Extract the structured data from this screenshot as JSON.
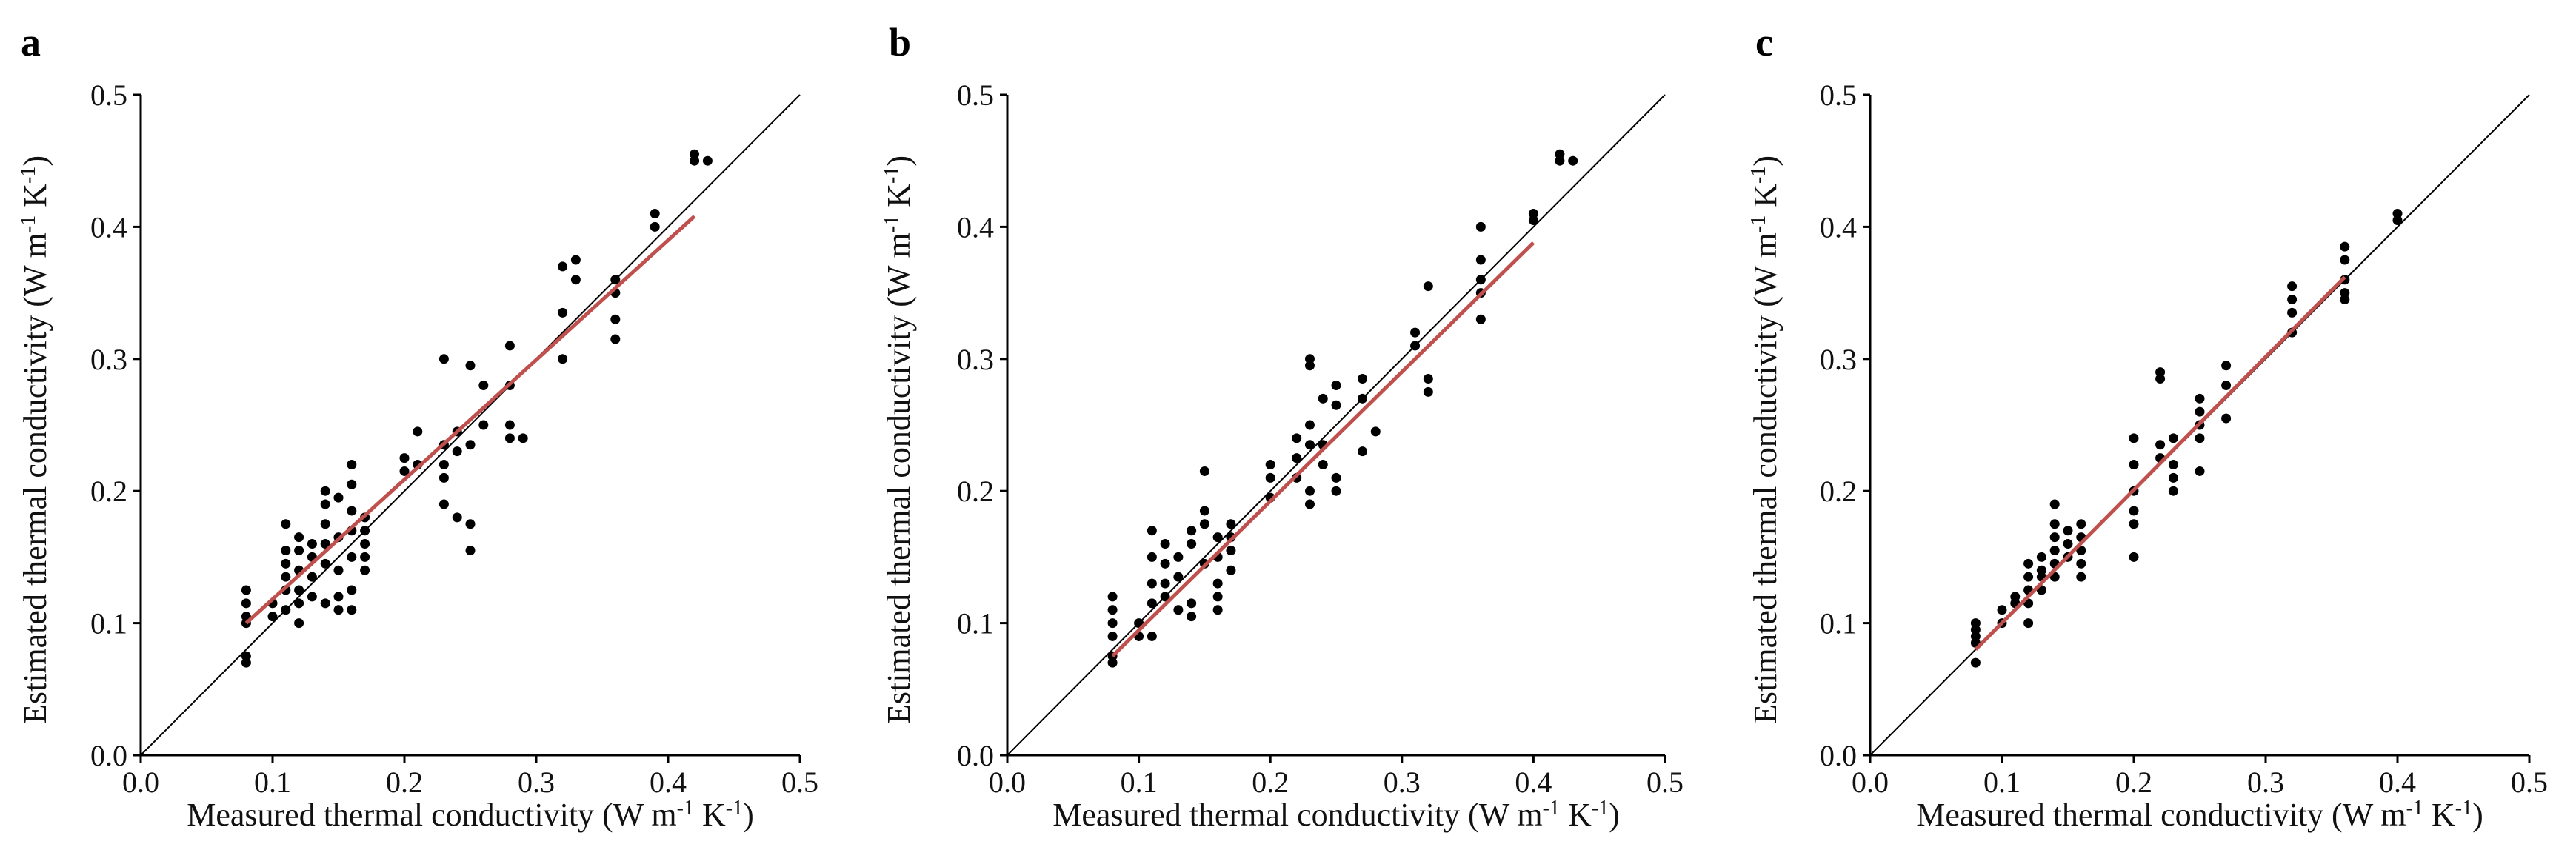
{
  "colors": {
    "points": "#000000",
    "one_to_one": "#000000",
    "fit": "#c0504d"
  },
  "chart_data": [
    {
      "type": "scatter",
      "panel": "a",
      "xlabel": "Measured thermal conductivity (W m-1 K-1)",
      "ylabel": "Estimated thermal conductivity (W m-1 K-1)",
      "xlim": [
        0,
        0.5
      ],
      "ylim": [
        0,
        0.5
      ],
      "xticks": [
        "0.0",
        "0.1",
        "0.2",
        "0.3",
        "0.4",
        "0.5"
      ],
      "yticks": [
        "0.0",
        "0.1",
        "0.2",
        "0.3",
        "0.4",
        "0.5"
      ],
      "reference_line": {
        "name": "1:1 line",
        "x": [
          0,
          0.5
        ],
        "y": [
          0,
          0.5
        ]
      },
      "fit_line": {
        "name": "regression",
        "x": [
          0.08,
          0.42
        ],
        "y": [
          0.1,
          0.408
        ]
      },
      "points": [
        [
          0.08,
          0.125
        ],
        [
          0.08,
          0.115
        ],
        [
          0.08,
          0.105
        ],
        [
          0.08,
          0.1
        ],
        [
          0.08,
          0.075
        ],
        [
          0.08,
          0.07
        ],
        [
          0.1,
          0.115
        ],
        [
          0.1,
          0.105
        ],
        [
          0.11,
          0.175
        ],
        [
          0.11,
          0.155
        ],
        [
          0.11,
          0.145
        ],
        [
          0.11,
          0.135
        ],
        [
          0.11,
          0.125
        ],
        [
          0.11,
          0.11
        ],
        [
          0.12,
          0.165
        ],
        [
          0.12,
          0.155
        ],
        [
          0.12,
          0.14
        ],
        [
          0.12,
          0.125
        ],
        [
          0.12,
          0.115
        ],
        [
          0.12,
          0.1
        ],
        [
          0.13,
          0.16
        ],
        [
          0.13,
          0.15
        ],
        [
          0.13,
          0.135
        ],
        [
          0.13,
          0.12
        ],
        [
          0.14,
          0.2
        ],
        [
          0.14,
          0.19
        ],
        [
          0.14,
          0.175
        ],
        [
          0.14,
          0.16
        ],
        [
          0.14,
          0.145
        ],
        [
          0.14,
          0.115
        ],
        [
          0.15,
          0.195
        ],
        [
          0.15,
          0.165
        ],
        [
          0.15,
          0.14
        ],
        [
          0.15,
          0.12
        ],
        [
          0.15,
          0.11
        ],
        [
          0.16,
          0.22
        ],
        [
          0.16,
          0.205
        ],
        [
          0.16,
          0.185
        ],
        [
          0.16,
          0.17
        ],
        [
          0.16,
          0.15
        ],
        [
          0.16,
          0.125
        ],
        [
          0.16,
          0.11
        ],
        [
          0.17,
          0.18
        ],
        [
          0.17,
          0.17
        ],
        [
          0.17,
          0.16
        ],
        [
          0.17,
          0.15
        ],
        [
          0.17,
          0.14
        ],
        [
          0.2,
          0.225
        ],
        [
          0.2,
          0.215
        ],
        [
          0.21,
          0.22
        ],
        [
          0.21,
          0.245
        ],
        [
          0.23,
          0.3
        ],
        [
          0.23,
          0.235
        ],
        [
          0.23,
          0.22
        ],
        [
          0.23,
          0.21
        ],
        [
          0.23,
          0.19
        ],
        [
          0.24,
          0.245
        ],
        [
          0.24,
          0.23
        ],
        [
          0.24,
          0.18
        ],
        [
          0.25,
          0.295
        ],
        [
          0.25,
          0.235
        ],
        [
          0.25,
          0.175
        ],
        [
          0.25,
          0.155
        ],
        [
          0.26,
          0.28
        ],
        [
          0.26,
          0.25
        ],
        [
          0.28,
          0.31
        ],
        [
          0.28,
          0.28
        ],
        [
          0.28,
          0.25
        ],
        [
          0.28,
          0.24
        ],
        [
          0.29,
          0.24
        ],
        [
          0.32,
          0.37
        ],
        [
          0.32,
          0.335
        ],
        [
          0.32,
          0.3
        ],
        [
          0.33,
          0.375
        ],
        [
          0.33,
          0.36
        ],
        [
          0.36,
          0.36
        ],
        [
          0.36,
          0.35
        ],
        [
          0.36,
          0.33
        ],
        [
          0.36,
          0.315
        ],
        [
          0.39,
          0.41
        ],
        [
          0.39,
          0.4
        ],
        [
          0.42,
          0.455
        ],
        [
          0.42,
          0.45
        ],
        [
          0.43,
          0.45
        ]
      ]
    },
    {
      "type": "scatter",
      "panel": "b",
      "xlabel": "Measured thermal conductivity (W m-1 K-1)",
      "ylabel": "Estimated thermal conductivity (W m-1 K-1)",
      "xlim": [
        0,
        0.5
      ],
      "ylim": [
        0,
        0.5
      ],
      "xticks": [
        "0.0",
        "0.1",
        "0.2",
        "0.3",
        "0.4",
        "0.5"
      ],
      "yticks": [
        "0.0",
        "0.1",
        "0.2",
        "0.3",
        "0.4",
        "0.5"
      ],
      "reference_line": {
        "name": "1:1 line",
        "x": [
          0,
          0.5
        ],
        "y": [
          0,
          0.5
        ]
      },
      "fit_line": {
        "name": "regression",
        "x": [
          0.08,
          0.4
        ],
        "y": [
          0.075,
          0.388
        ]
      },
      "points": [
        [
          0.08,
          0.12
        ],
        [
          0.08,
          0.11
        ],
        [
          0.08,
          0.1
        ],
        [
          0.08,
          0.09
        ],
        [
          0.08,
          0.075
        ],
        [
          0.08,
          0.07
        ],
        [
          0.1,
          0.1
        ],
        [
          0.1,
          0.09
        ],
        [
          0.11,
          0.17
        ],
        [
          0.11,
          0.15
        ],
        [
          0.11,
          0.13
        ],
        [
          0.11,
          0.115
        ],
        [
          0.11,
          0.09
        ],
        [
          0.12,
          0.16
        ],
        [
          0.12,
          0.145
        ],
        [
          0.12,
          0.13
        ],
        [
          0.12,
          0.12
        ],
        [
          0.13,
          0.15
        ],
        [
          0.13,
          0.135
        ],
        [
          0.13,
          0.11
        ],
        [
          0.14,
          0.17
        ],
        [
          0.14,
          0.16
        ],
        [
          0.14,
          0.115
        ],
        [
          0.14,
          0.105
        ],
        [
          0.15,
          0.215
        ],
        [
          0.15,
          0.185
        ],
        [
          0.15,
          0.175
        ],
        [
          0.15,
          0.145
        ],
        [
          0.16,
          0.165
        ],
        [
          0.16,
          0.15
        ],
        [
          0.16,
          0.13
        ],
        [
          0.16,
          0.12
        ],
        [
          0.16,
          0.11
        ],
        [
          0.17,
          0.175
        ],
        [
          0.17,
          0.165
        ],
        [
          0.17,
          0.155
        ],
        [
          0.17,
          0.14
        ],
        [
          0.2,
          0.21
        ],
        [
          0.2,
          0.195
        ],
        [
          0.2,
          0.22
        ],
        [
          0.22,
          0.24
        ],
        [
          0.22,
          0.225
        ],
        [
          0.22,
          0.21
        ],
        [
          0.23,
          0.3
        ],
        [
          0.23,
          0.295
        ],
        [
          0.23,
          0.25
        ],
        [
          0.23,
          0.235
        ],
        [
          0.23,
          0.2
        ],
        [
          0.23,
          0.19
        ],
        [
          0.24,
          0.27
        ],
        [
          0.24,
          0.235
        ],
        [
          0.24,
          0.22
        ],
        [
          0.25,
          0.28
        ],
        [
          0.25,
          0.265
        ],
        [
          0.25,
          0.21
        ],
        [
          0.25,
          0.2
        ],
        [
          0.27,
          0.285
        ],
        [
          0.27,
          0.27
        ],
        [
          0.27,
          0.23
        ],
        [
          0.28,
          0.245
        ],
        [
          0.31,
          0.32
        ],
        [
          0.31,
          0.31
        ],
        [
          0.32,
          0.355
        ],
        [
          0.32,
          0.285
        ],
        [
          0.32,
          0.275
        ],
        [
          0.36,
          0.4
        ],
        [
          0.36,
          0.375
        ],
        [
          0.36,
          0.36
        ],
        [
          0.36,
          0.35
        ],
        [
          0.36,
          0.33
        ],
        [
          0.4,
          0.41
        ],
        [
          0.4,
          0.405
        ],
        [
          0.42,
          0.455
        ],
        [
          0.42,
          0.45
        ],
        [
          0.43,
          0.45
        ]
      ]
    },
    {
      "type": "scatter",
      "panel": "c",
      "xlabel": "Measured thermal conductivity (W m-1 K-1)",
      "ylabel": "Estimated thermal conductivity (W m-1 K-1)",
      "xlim": [
        0,
        0.5
      ],
      "ylim": [
        0,
        0.5
      ],
      "xticks": [
        "0.0",
        "0.1",
        "0.2",
        "0.3",
        "0.4",
        "0.5"
      ],
      "yticks": [
        "0.0",
        "0.1",
        "0.2",
        "0.3",
        "0.4",
        "0.5"
      ],
      "reference_line": {
        "name": "1:1 line",
        "x": [
          0,
          0.5
        ],
        "y": [
          0,
          0.5
        ]
      },
      "fit_line": {
        "name": "regression",
        "x": [
          0.08,
          0.36
        ],
        "y": [
          0.08,
          0.362
        ]
      },
      "points": [
        [
          0.08,
          0.1
        ],
        [
          0.08,
          0.095
        ],
        [
          0.08,
          0.09
        ],
        [
          0.08,
          0.085
        ],
        [
          0.08,
          0.07
        ],
        [
          0.1,
          0.11
        ],
        [
          0.1,
          0.1
        ],
        [
          0.11,
          0.12
        ],
        [
          0.11,
          0.115
        ],
        [
          0.12,
          0.145
        ],
        [
          0.12,
          0.135
        ],
        [
          0.12,
          0.125
        ],
        [
          0.12,
          0.115
        ],
        [
          0.12,
          0.1
        ],
        [
          0.13,
          0.15
        ],
        [
          0.13,
          0.14
        ],
        [
          0.13,
          0.135
        ],
        [
          0.13,
          0.125
        ],
        [
          0.14,
          0.19
        ],
        [
          0.14,
          0.175
        ],
        [
          0.14,
          0.165
        ],
        [
          0.14,
          0.155
        ],
        [
          0.14,
          0.145
        ],
        [
          0.14,
          0.135
        ],
        [
          0.15,
          0.17
        ],
        [
          0.15,
          0.16
        ],
        [
          0.15,
          0.15
        ],
        [
          0.16,
          0.175
        ],
        [
          0.16,
          0.165
        ],
        [
          0.16,
          0.155
        ],
        [
          0.16,
          0.145
        ],
        [
          0.16,
          0.135
        ],
        [
          0.2,
          0.24
        ],
        [
          0.2,
          0.22
        ],
        [
          0.2,
          0.2
        ],
        [
          0.2,
          0.185
        ],
        [
          0.2,
          0.175
        ],
        [
          0.2,
          0.15
        ],
        [
          0.22,
          0.29
        ],
        [
          0.22,
          0.285
        ],
        [
          0.22,
          0.235
        ],
        [
          0.22,
          0.225
        ],
        [
          0.23,
          0.24
        ],
        [
          0.23,
          0.22
        ],
        [
          0.23,
          0.21
        ],
        [
          0.23,
          0.2
        ],
        [
          0.25,
          0.27
        ],
        [
          0.25,
          0.26
        ],
        [
          0.25,
          0.25
        ],
        [
          0.25,
          0.24
        ],
        [
          0.25,
          0.215
        ],
        [
          0.27,
          0.295
        ],
        [
          0.27,
          0.28
        ],
        [
          0.27,
          0.255
        ],
        [
          0.32,
          0.355
        ],
        [
          0.32,
          0.345
        ],
        [
          0.32,
          0.335
        ],
        [
          0.32,
          0.32
        ],
        [
          0.36,
          0.385
        ],
        [
          0.36,
          0.375
        ],
        [
          0.36,
          0.36
        ],
        [
          0.36,
          0.35
        ],
        [
          0.36,
          0.345
        ],
        [
          0.4,
          0.41
        ],
        [
          0.4,
          0.405
        ]
      ]
    }
  ]
}
